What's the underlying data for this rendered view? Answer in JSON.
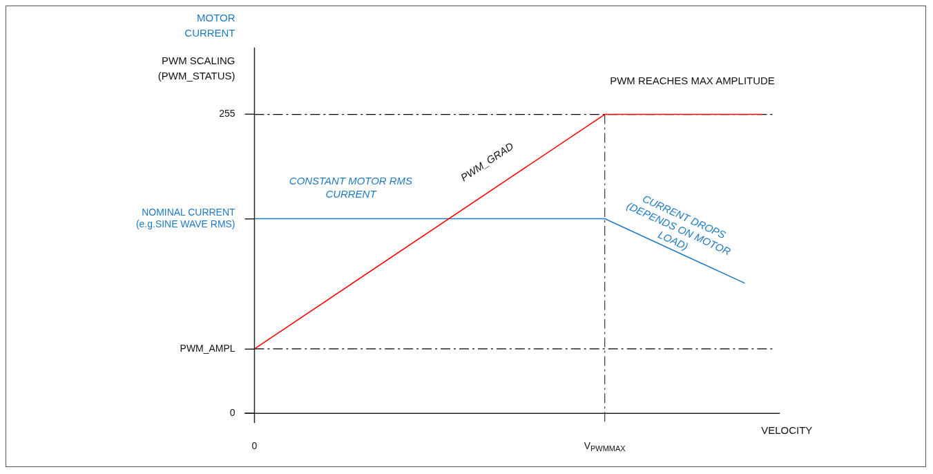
{
  "chart_data": {
    "type": "line",
    "ylabel": "PWM SCALING (PWM_STATUS)",
    "xlabel": "VELOCITY",
    "categories": [
      "0",
      null,
      null,
      null,
      null,
      null,
      null,
      null,
      null,
      null,
      null,
      null,
      null,
      null,
      null,
      null,
      null,
      null,
      null,
      null,
      "V$_{PWMMAX}$",
      null,
      null,
      null,
      null,
      null,
      null,
      null,
      null,
      null,
      null
    ],
    "ylim": [
      0,
      312
    ],
    "yticks": [
      0,
      {
        "value": 55,
        "label": "PWM_AMPL"
      },
      {
        "value": 166,
        "label": "NOMINAL CURRENT (e.g.SINE WAVE RMS)"
      },
      255
    ],
    "series": [
      {
        "color": "#ff0000",
        "values": [
          55,
          null,
          null,
          null,
          null,
          null,
          null,
          null,
          null,
          null,
          null,
          null,
          null,
          null,
          null,
          null,
          null,
          null,
          null,
          null,
          255,
          null,
          null,
          null,
          null,
          null,
          null,
          null,
          null,
          255,
          null
        ]
      },
      {
        "color": "#1f7ac4",
        "values": [
          166,
          null,
          null,
          null,
          null,
          null,
          null,
          null,
          null,
          null,
          null,
          null,
          null,
          null,
          null,
          null,
          null,
          null,
          null,
          null,
          166,
          null,
          null,
          null,
          null,
          null,
          null,
          null,
          111,
          null,
          null
        ]
      }
    ],
    "ref_lines": [
      {
        "axis": "y",
        "value": 255,
        "color": "#000000",
        "line_style": "dashed"
      },
      {
        "axis": "y",
        "value": 55,
        "color": "#000000",
        "line_style": "dashed"
      },
      {
        "axis": "x",
        "value": "V$_{PWMMAX}$",
        "color": "#333333",
        "line_style": "dashed"
      }
    ],
    "annotations": [
      "MOTOR CURRENT",
      "CONSTANT MOTOR RMS CURRENT",
      "PWM_GRAD",
      "PWM REACHES MAX AMPLITUDE",
      "CURRENT DROPS (DEPENDS ON MOTOR LOAD)"
    ],
    "grid": false,
    "legend": false,
    "marker": "none",
    "line_style": "solid"
  }
}
